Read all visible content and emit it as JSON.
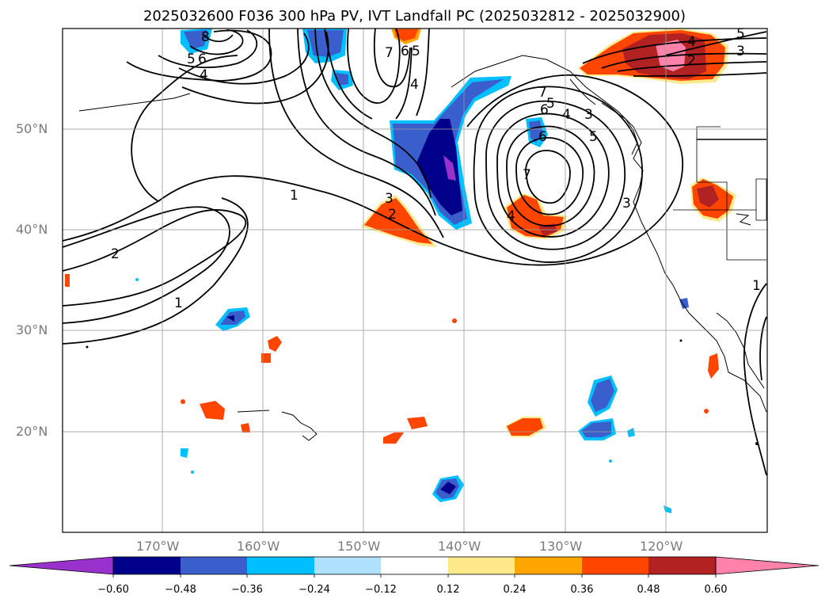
{
  "title": "2025032600 F036 300 hPa PV, IVT Landfall PC (2025032812 - 2025032900)",
  "lat_labels": [
    "50°N",
    "40°N",
    "30°N",
    "20°N"
  ],
  "lon_labels": [
    "170°W",
    "160°W",
    "150°W",
    "140°W",
    "130°W",
    "120°W"
  ],
  "colorbar": {
    "ticks": [
      "−0.60",
      "−0.48",
      "−0.36",
      "−0.24",
      "−0.12",
      "0.12",
      "0.24",
      "0.36",
      "0.48",
      "0.60"
    ],
    "colors": [
      "#9932CC",
      "#00008B",
      "#3A5FCD",
      "#00BFFF",
      "#B0E2FF",
      "#FFFFFF",
      "#FFE98A",
      "#FFA500",
      "#FF4500",
      "#B22222",
      "#FF82AB"
    ]
  },
  "contour_labels": [
    "8",
    "5",
    "6",
    "4",
    "7",
    "6",
    "5",
    "4",
    "1",
    "2",
    "1",
    "3",
    "2",
    "7",
    "6",
    "5",
    "4",
    "3",
    "7",
    "6",
    "5",
    "3",
    "4",
    "5",
    "3",
    "4",
    "2",
    "1"
  ]
}
